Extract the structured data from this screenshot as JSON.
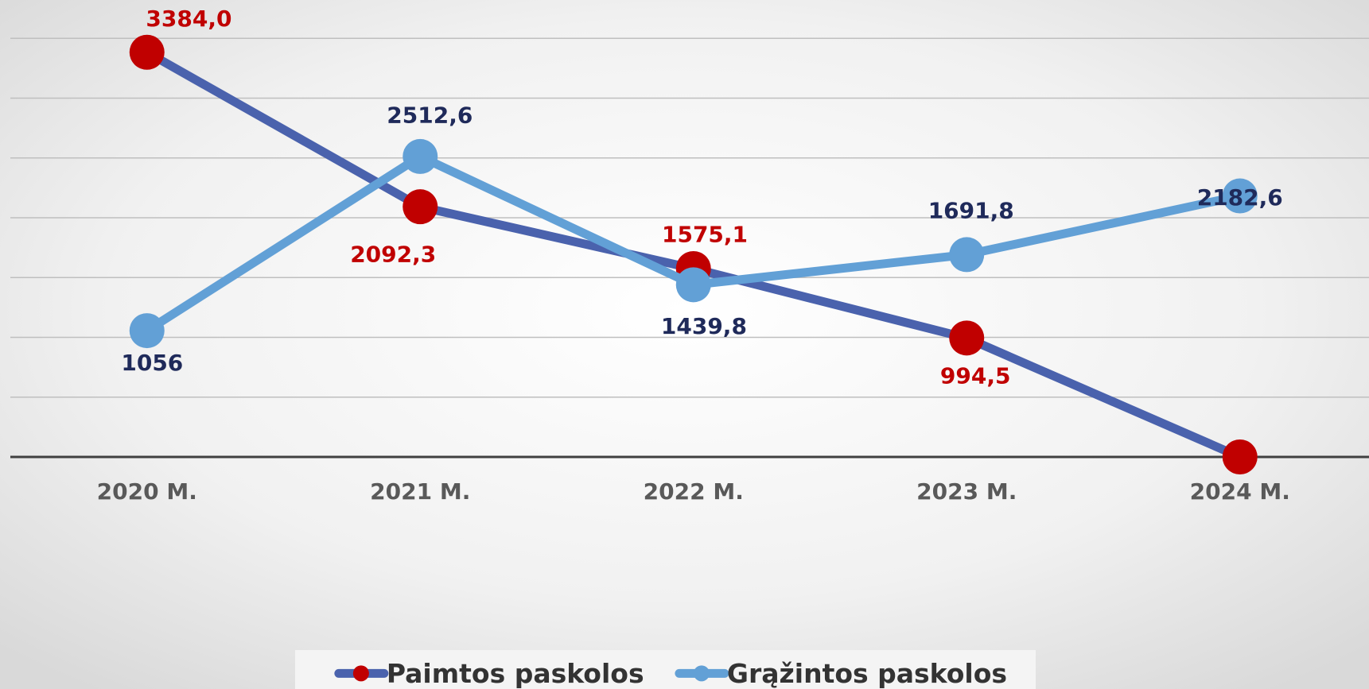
{
  "chart_data": {
    "type": "line",
    "categories": [
      "2020 M.",
      "2021 M.",
      "2022 M.",
      "2023 M.",
      "2024 M."
    ],
    "series": [
      {
        "name": "Paimtos paskolos",
        "color": "#4a62ad",
        "marker_color": "#c00000",
        "label_color": "#c00000",
        "values": [
          3384.0,
          2092.3,
          1575.1,
          994.5,
          0
        ],
        "value_labels": [
          "3384,0",
          "2092,3",
          "1575,1",
          "994,5",
          null
        ]
      },
      {
        "name": "Grąžintos paskolos",
        "color": "#62a0d6",
        "marker_color": "#62a0d6",
        "label_color": "#1f2a5a",
        "values": [
          1056,
          2512.6,
          1439.8,
          1691.8,
          2182.6
        ],
        "value_labels": [
          "1056",
          "2512,6",
          "1439,8",
          "1691,8",
          "2182,6"
        ]
      }
    ],
    "ylim": [
      0,
      3500
    ],
    "yticks": [
      0,
      500,
      1000,
      1500,
      2000,
      2500,
      3000,
      3500
    ],
    "grid": true,
    "legend": "bottom"
  }
}
